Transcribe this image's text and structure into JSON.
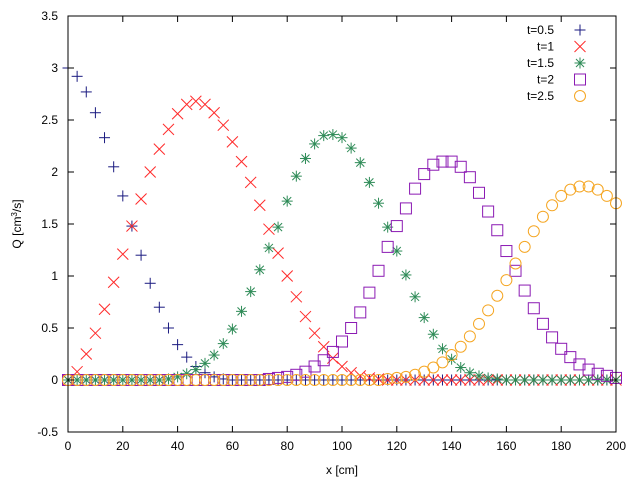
{
  "chart_data": {
    "type": "scatter",
    "xlabel": "x [cm]",
    "ylabel_base": "Q [cm",
    "ylabel_sup": "3",
    "ylabel_tail": "/s]",
    "xlim": [
      0,
      200
    ],
    "ylim": [
      -0.5,
      3.5
    ],
    "xticks": [
      0,
      20,
      40,
      60,
      80,
      100,
      120,
      140,
      160,
      180,
      200
    ],
    "yticks": [
      -0.5,
      0,
      0.5,
      1,
      1.5,
      2,
      2.5,
      3,
      3.5
    ],
    "xtick_labels": [
      "0",
      "20",
      "40",
      "60",
      "80",
      "100",
      "120",
      "140",
      "160",
      "180",
      "200"
    ],
    "ytick_labels": [
      "-0.5",
      "0",
      "0.5",
      "1",
      "1.5",
      "2",
      "2.5",
      "3",
      "3.5"
    ],
    "grid": false,
    "legend_position": "top-right",
    "x": [
      0,
      3.33,
      6.67,
      10,
      13.33,
      16.67,
      20,
      23.33,
      26.67,
      30,
      33.33,
      36.67,
      40,
      43.33,
      46.67,
      50,
      53.33,
      56.67,
      60,
      63.33,
      66.67,
      70,
      73.33,
      76.67,
      80,
      83.33,
      86.67,
      90,
      93.33,
      96.67,
      100,
      103.33,
      106.67,
      110,
      113.33,
      116.67,
      120,
      123.33,
      126.67,
      130,
      133.33,
      136.67,
      140,
      143.33,
      146.67,
      150,
      153.33,
      156.67,
      160,
      163.33,
      166.67,
      170,
      173.33,
      176.67,
      180,
      183.33,
      186.67,
      190,
      193.33,
      196.67,
      200
    ],
    "series": [
      {
        "name": "t=0.5",
        "marker": "plus",
        "color": "#1a1a80",
        "values": [
          3.0,
          2.92,
          2.77,
          2.57,
          2.33,
          2.05,
          1.77,
          1.48,
          1.2,
          0.93,
          0.7,
          0.5,
          0.34,
          0.22,
          0.13,
          0.07,
          0.03,
          0.01,
          0,
          0,
          0,
          0,
          0,
          0,
          0,
          0,
          0,
          0,
          0,
          0,
          0,
          0,
          0,
          0,
          0,
          0,
          0,
          0,
          0,
          0,
          0,
          0,
          0,
          0,
          0,
          0,
          0,
          0,
          0,
          0,
          0,
          0,
          0,
          0,
          0,
          0,
          0,
          0,
          0,
          0,
          0
        ]
      },
      {
        "name": "t=1",
        "marker": "x",
        "color": "#ff2a2a",
        "values": [
          0,
          0.08,
          0.25,
          0.45,
          0.68,
          0.94,
          1.21,
          1.48,
          1.74,
          2.0,
          2.22,
          2.41,
          2.56,
          2.65,
          2.68,
          2.65,
          2.57,
          2.45,
          2.29,
          2.1,
          1.9,
          1.68,
          1.45,
          1.22,
          1.0,
          0.8,
          0.61,
          0.45,
          0.32,
          0.21,
          0.13,
          0.07,
          0.04,
          0.02,
          0.01,
          0,
          0,
          0,
          0,
          0,
          0,
          0,
          0,
          0,
          0,
          0,
          0,
          0,
          0,
          0,
          0,
          0,
          0,
          0,
          0,
          0,
          0,
          0,
          0,
          0,
          0
        ]
      },
      {
        "name": "t=1.5",
        "marker": "star",
        "color": "#2e8b57",
        "values": [
          0,
          0,
          0,
          0,
          0,
          0,
          0,
          0,
          0,
          0,
          0,
          0.01,
          0.03,
          0.06,
          0.1,
          0.16,
          0.24,
          0.35,
          0.49,
          0.66,
          0.85,
          1.06,
          1.27,
          1.47,
          1.72,
          1.96,
          2.13,
          2.27,
          2.35,
          2.36,
          2.33,
          2.23,
          2.09,
          1.9,
          1.7,
          1.47,
          1.24,
          1.01,
          0.8,
          0.6,
          0.44,
          0.3,
          0.2,
          0.12,
          0.07,
          0.04,
          0.02,
          0.01,
          0,
          0,
          0,
          0,
          0,
          0,
          0,
          0,
          0,
          0,
          0,
          0,
          0
        ]
      },
      {
        "name": "t=2",
        "marker": "square",
        "color": "#8b1ab3",
        "values": [
          0,
          0,
          0,
          0,
          0,
          0,
          0,
          0,
          0,
          0,
          0,
          0,
          0,
          0,
          0,
          0,
          0,
          0,
          0,
          0,
          0,
          0,
          0.01,
          0.02,
          0.03,
          0.05,
          0.08,
          0.13,
          0.19,
          0.27,
          0.37,
          0.5,
          0.65,
          0.84,
          1.05,
          1.28,
          1.48,
          1.65,
          1.84,
          1.98,
          2.07,
          2.1,
          2.1,
          2.05,
          1.95,
          1.8,
          1.62,
          1.44,
          1.24,
          1.05,
          0.86,
          0.69,
          0.54,
          0.41,
          0.3,
          0.22,
          0.15,
          0.1,
          0.06,
          0.04,
          0.02
        ]
      },
      {
        "name": "t=2.5",
        "marker": "circle",
        "color": "#f5a623",
        "values": [
          0,
          0,
          0,
          0,
          0,
          0,
          0,
          0,
          0,
          0,
          0,
          0,
          0,
          0,
          0,
          0,
          0,
          0,
          0,
          0,
          0,
          0,
          0,
          0,
          0,
          0,
          0,
          0,
          0,
          0,
          0,
          0,
          0,
          0,
          0,
          0.01,
          0.02,
          0.03,
          0.05,
          0.08,
          0.12,
          0.17,
          0.24,
          0.32,
          0.42,
          0.54,
          0.67,
          0.81,
          0.96,
          1.12,
          1.28,
          1.43,
          1.57,
          1.68,
          1.77,
          1.83,
          1.86,
          1.86,
          1.83,
          1.77,
          1.7
        ]
      }
    ]
  }
}
